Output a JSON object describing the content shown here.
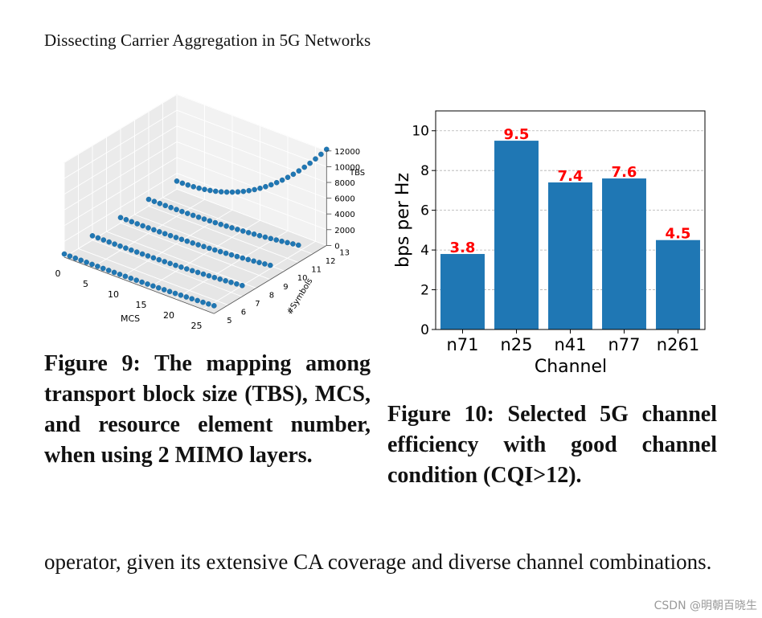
{
  "header": {
    "running_title": "Dissecting Carrier Aggregation in 5G Networks"
  },
  "figure9": {
    "caption": "Figure 9: The mapping among transport block size (TBS), MCS, and resource element number, when using 2 MIMO layers.",
    "chart_data": {
      "type": "scatter",
      "title": "",
      "xlabel": "MCS",
      "ylabel": "#Symbols",
      "zlabel": "TBS",
      "xlim": [
        0,
        27
      ],
      "ylim": [
        5,
        13
      ],
      "zlim": [
        0,
        12000
      ],
      "x_ticks": [
        "0",
        "5",
        "10",
        "15",
        "20",
        "25"
      ],
      "y_ticks": [
        "5",
        "6",
        "7",
        "8",
        "9",
        "10",
        "11",
        "12",
        "13"
      ],
      "z_ticks": [
        "0",
        "2000",
        "4000",
        "6000",
        "8000",
        "10000",
        "12000"
      ],
      "series": [
        {
          "symbols": 5,
          "tbs_start": 400,
          "tbs_end": 1000
        },
        {
          "symbols": 7,
          "tbs_start": 550,
          "tbs_end": 1400
        },
        {
          "symbols": 9,
          "tbs_start": 700,
          "tbs_end": 1800
        },
        {
          "symbols": 11,
          "tbs_start": 850,
          "tbs_end": 2200
        },
        {
          "symbols": 13,
          "tbs_start": 1000,
          "tbs_end": 12200
        }
      ],
      "mcs_values": [
        0,
        1,
        2,
        3,
        4,
        5,
        6,
        7,
        8,
        9,
        10,
        11,
        12,
        13,
        14,
        15,
        16,
        17,
        18,
        19,
        20,
        21,
        22,
        23,
        24,
        25,
        26,
        27
      ],
      "grid": true
    }
  },
  "figure10": {
    "caption": "Figure 10: Selected 5G channel efficiency with good channel condition (CQI>12).",
    "chart_data": {
      "type": "bar",
      "title": "",
      "categories": [
        "n71",
        "n25",
        "n41",
        "n77",
        "n261"
      ],
      "values": [
        3.8,
        9.5,
        7.4,
        7.6,
        4.5
      ],
      "value_labels": [
        "3.8",
        "9.5",
        "7.4",
        "7.6",
        "4.5"
      ],
      "xlabel": "Channel",
      "ylabel": "bps per Hz",
      "ylim": [
        0,
        11
      ],
      "y_ticks": [
        0,
        2,
        4,
        6,
        8,
        10
      ],
      "grid": true,
      "bar_color": "#1f77b4",
      "label_color": "#ff0000"
    }
  },
  "body": {
    "text": "operator, given its extensive CA coverage and diverse channel combinations."
  },
  "watermark": "CSDN @明朝百晓生"
}
